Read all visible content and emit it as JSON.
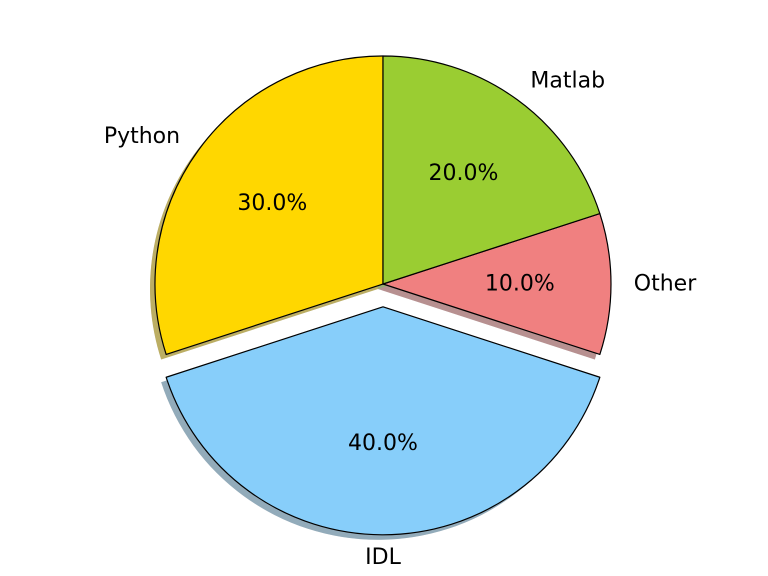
{
  "chart_data": {
    "type": "pie",
    "title": "",
    "categories": [
      "Python",
      "IDL",
      "Other",
      "Matlab"
    ],
    "values": [
      30.0,
      40.0,
      10.0,
      20.0
    ],
    "percent_labels": [
      "30.0%",
      "40.0%",
      "10.0%",
      "20.0%"
    ],
    "colors": [
      "#ffd700",
      "#87cefa",
      "#f08080",
      "#9acd32"
    ],
    "exploded": [
      false,
      true,
      false,
      false
    ],
    "start_angle_deg": 90,
    "direction": "counterclockwise",
    "shadow": true,
    "edge_color": "#000000"
  }
}
